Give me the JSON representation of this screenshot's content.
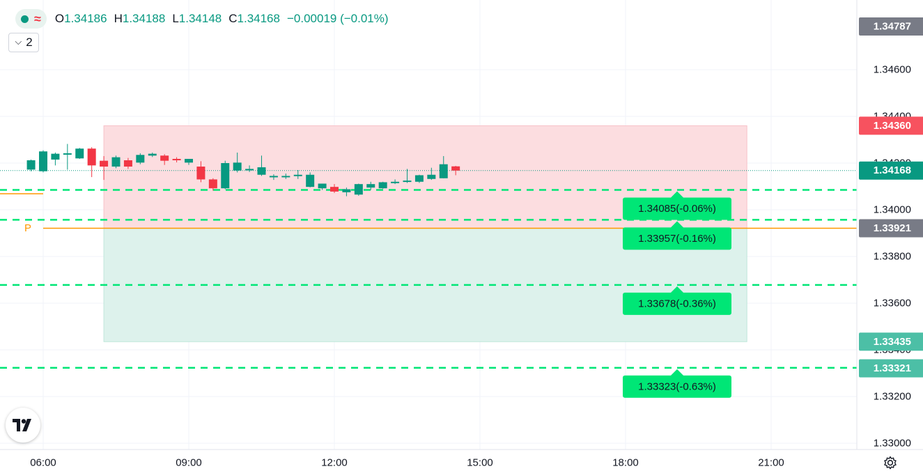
{
  "legend": {
    "status_icon": "market-open-dot-icon",
    "wave_icon": "approx-wave-icon",
    "ohlc": {
      "o_label": "O",
      "o_value": "1.34186",
      "h_label": "H",
      "h_value": "1.34188",
      "l_label": "L",
      "l_value": "1.34148",
      "c_label": "C",
      "c_value": "1.34168",
      "change": "−0.00019 (−0.01%)"
    },
    "collapse_count": "2"
  },
  "colors": {
    "up": "#089981",
    "down": "#f23645",
    "target_line": "#00e676",
    "pivot_line": "#ff9800",
    "stop_zone": "#fcdde0",
    "target_zone": "#ddf2ec"
  },
  "price_axis": {
    "ticks": [
      "1.34600",
      "1.34400",
      "1.34200",
      "1.34000",
      "1.33800",
      "1.33600",
      "1.33400",
      "1.33200",
      "1.33000"
    ],
    "badges": {
      "top": "1.34787",
      "stop": "1.34360",
      "last": "1.34168",
      "pivot": "1.33921",
      "target": "1.33435",
      "level4": "1.33321"
    }
  },
  "time_axis": {
    "ticks": [
      "06:00",
      "09:00",
      "12:00",
      "15:00",
      "18:00",
      "21:00"
    ]
  },
  "pivot_label": "P",
  "levels": [
    {
      "price": 1.34085,
      "label": "1.34085(-0.06%)"
    },
    {
      "price": 1.33957,
      "label": "1.33957(-0.16%)"
    },
    {
      "price": 1.33678,
      "label": "1.33678(-0.36%)"
    },
    {
      "price": 1.33323,
      "label": "1.33323(-0.63%)"
    }
  ],
  "chart_data": {
    "type": "candlestick",
    "symbol_interval_minutes": 15,
    "ylim": [
      1.3296,
      1.3484
    ],
    "x_ticks": [
      "06:00",
      "09:00",
      "12:00",
      "15:00",
      "18:00",
      "21:00"
    ],
    "candles": [
      {
        "t": "05:45",
        "o": 1.34172,
        "h": 1.34215,
        "l": 1.34165,
        "c": 1.34212
      },
      {
        "t": "06:00",
        "o": 1.34165,
        "h": 1.34255,
        "l": 1.3416,
        "c": 1.3425
      },
      {
        "t": "06:15",
        "o": 1.34215,
        "h": 1.34245,
        "l": 1.3419,
        "c": 1.3424
      },
      {
        "t": "06:30",
        "o": 1.34238,
        "h": 1.34282,
        "l": 1.34172,
        "c": 1.34242
      },
      {
        "t": "06:45",
        "o": 1.3422,
        "h": 1.34265,
        "l": 1.34218,
        "c": 1.34262
      },
      {
        "t": "07:00",
        "o": 1.34262,
        "h": 1.34268,
        "l": 1.3414,
        "c": 1.3419
      },
      {
        "t": "07:15",
        "o": 1.3421,
        "h": 1.3423,
        "l": 1.34128,
        "c": 1.34185
      },
      {
        "t": "07:30",
        "o": 1.34185,
        "h": 1.34232,
        "l": 1.34178,
        "c": 1.34225
      },
      {
        "t": "07:45",
        "o": 1.34212,
        "h": 1.34222,
        "l": 1.34175,
        "c": 1.34185
      },
      {
        "t": "08:00",
        "o": 1.34202,
        "h": 1.34242,
        "l": 1.34195,
        "c": 1.34235
      },
      {
        "t": "08:15",
        "o": 1.34232,
        "h": 1.34245,
        "l": 1.34226,
        "c": 1.3424
      },
      {
        "t": "08:30",
        "o": 1.34232,
        "h": 1.34238,
        "l": 1.34192,
        "c": 1.3421
      },
      {
        "t": "08:45",
        "o": 1.34218,
        "h": 1.34225,
        "l": 1.34203,
        "c": 1.34212
      },
      {
        "t": "09:00",
        "o": 1.34202,
        "h": 1.34218,
        "l": 1.34192,
        "c": 1.34218
      },
      {
        "t": "09:15",
        "o": 1.34185,
        "h": 1.34208,
        "l": 1.34118,
        "c": 1.3413
      },
      {
        "t": "09:30",
        "o": 1.3413,
        "h": 1.34135,
        "l": 1.34082,
        "c": 1.34092
      },
      {
        "t": "09:45",
        "o": 1.34092,
        "h": 1.3421,
        "l": 1.34088,
        "c": 1.342
      },
      {
        "t": "10:00",
        "o": 1.34168,
        "h": 1.34245,
        "l": 1.3416,
        "c": 1.34202
      },
      {
        "t": "10:15",
        "o": 1.3417,
        "h": 1.3419,
        "l": 1.34162,
        "c": 1.34175
      },
      {
        "t": "10:30",
        "o": 1.3415,
        "h": 1.34232,
        "l": 1.34145,
        "c": 1.34182
      },
      {
        "t": "10:45",
        "o": 1.34145,
        "h": 1.34152,
        "l": 1.34128,
        "c": 1.34145
      },
      {
        "t": "11:00",
        "o": 1.3414,
        "h": 1.34155,
        "l": 1.34132,
        "c": 1.34145
      },
      {
        "t": "11:15",
        "o": 1.34148,
        "h": 1.3417,
        "l": 1.34132,
        "c": 1.3415
      },
      {
        "t": "11:30",
        "o": 1.34098,
        "h": 1.3416,
        "l": 1.34096,
        "c": 1.3415
      },
      {
        "t": "11:45",
        "o": 1.34092,
        "h": 1.34112,
        "l": 1.34085,
        "c": 1.34112
      },
      {
        "t": "12:00",
        "o": 1.34098,
        "h": 1.3411,
        "l": 1.34072,
        "c": 1.34078
      },
      {
        "t": "12:15",
        "o": 1.34075,
        "h": 1.34095,
        "l": 1.34058,
        "c": 1.34088
      },
      {
        "t": "12:30",
        "o": 1.34065,
        "h": 1.34112,
        "l": 1.3406,
        "c": 1.3411
      },
      {
        "t": "12:45",
        "o": 1.34095,
        "h": 1.3412,
        "l": 1.34085,
        "c": 1.3411
      },
      {
        "t": "13:00",
        "o": 1.34092,
        "h": 1.3412,
        "l": 1.3409,
        "c": 1.34118
      },
      {
        "t": "13:15",
        "o": 1.34118,
        "h": 1.3413,
        "l": 1.3411,
        "c": 1.3412
      },
      {
        "t": "13:30",
        "o": 1.3412,
        "h": 1.34175,
        "l": 1.34115,
        "c": 1.34125
      },
      {
        "t": "13:45",
        "o": 1.3412,
        "h": 1.3415,
        "l": 1.34115,
        "c": 1.34148
      },
      {
        "t": "14:00",
        "o": 1.34132,
        "h": 1.3418,
        "l": 1.34128,
        "c": 1.3415
      },
      {
        "t": "14:15",
        "o": 1.34135,
        "h": 1.3423,
        "l": 1.34135,
        "c": 1.34195
      },
      {
        "t": "14:30",
        "o": 1.34186,
        "h": 1.34188,
        "l": 1.34148,
        "c": 1.34168
      }
    ]
  }
}
